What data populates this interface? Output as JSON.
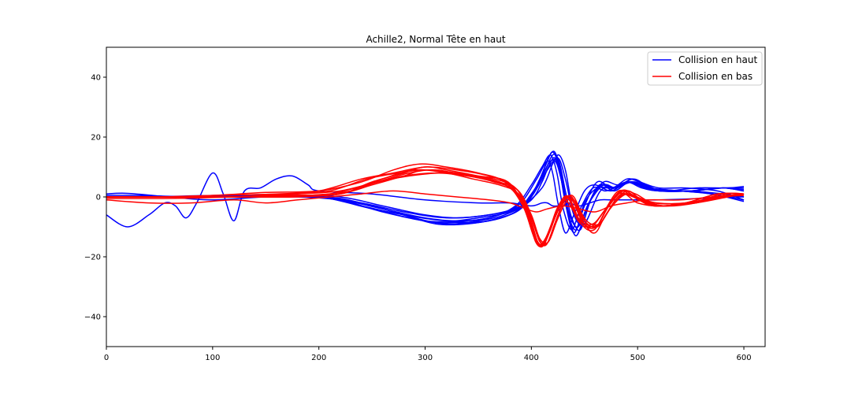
{
  "chart_data": {
    "type": "line",
    "title": "Achille2, Normal Tête en haut",
    "xlabel": "",
    "ylabel": "",
    "xlim": [
      0,
      620
    ],
    "ylim": [
      -50,
      50
    ],
    "xticks": [
      0,
      100,
      200,
      300,
      400,
      500,
      600
    ],
    "yticks": [
      -40,
      -20,
      0,
      20,
      40
    ],
    "x_tick_labels": [
      "0",
      "100",
      "200",
      "300",
      "400",
      "500",
      "600"
    ],
    "y_tick_labels": [
      "−40",
      "−20",
      "0",
      "20",
      "40"
    ],
    "grid": false,
    "legend_position": "top-right",
    "legend": [
      {
        "label": "Collision en haut",
        "color": "#0000ff"
      },
      {
        "label": "Collision en bas",
        "color": "#ff0000"
      }
    ],
    "series": [
      {
        "group": "Collision en haut",
        "color": "#0000ff",
        "x": [
          0,
          20,
          40,
          55,
          65,
          75,
          85,
          100,
          110,
          120,
          130,
          145,
          160,
          175,
          190,
          200,
          250,
          300,
          350,
          380,
          400,
          410,
          415,
          420,
          425,
          430,
          435,
          445,
          455,
          465,
          475,
          490,
          500,
          520,
          560,
          580,
          600
        ],
        "y": [
          -6,
          -10,
          -6,
          -2,
          -3,
          -7,
          -2,
          8,
          1,
          -8,
          2,
          3,
          6,
          7,
          4,
          2,
          1,
          -1,
          -2,
          -2,
          -3,
          -2,
          -2,
          -3,
          -3,
          -3,
          -2,
          -3,
          -2,
          -1,
          -1,
          -1,
          -1,
          -1,
          -0.5,
          0,
          0
        ]
      },
      {
        "group": "Collision en haut",
        "color": "#0000ff",
        "x": [
          0,
          20,
          60,
          100,
          150,
          200,
          250,
          300,
          340,
          370,
          390,
          405,
          415,
          420,
          425,
          432,
          440,
          450,
          460,
          475,
          490,
          500,
          520,
          550,
          580,
          600
        ],
        "y": [
          1,
          1.2,
          0,
          -1,
          0,
          0,
          -4,
          -8,
          -8,
          -6,
          -2,
          6,
          12,
          8,
          -2,
          -12,
          -6,
          2,
          4,
          2,
          5,
          4,
          2,
          2,
          1,
          0
        ]
      },
      {
        "group": "Collision en haut",
        "color": "#0000ff",
        "x": [
          0,
          30,
          80,
          130,
          180,
          220,
          260,
          300,
          330,
          360,
          385,
          400,
          410,
          418,
          424,
          430,
          438,
          446,
          458,
          470,
          485,
          498,
          510,
          540,
          570,
          600
        ],
        "y": [
          0.5,
          0.5,
          0,
          0,
          0,
          -1,
          -4,
          -7,
          -8,
          -7,
          -3,
          4,
          10,
          14,
          8,
          -4,
          -11,
          -4,
          3,
          2,
          4,
          5,
          3,
          2,
          1,
          -1
        ]
      },
      {
        "group": "Collision en haut",
        "color": "#0000ff",
        "x": [
          0,
          40,
          100,
          150,
          200,
          240,
          280,
          310,
          340,
          370,
          390,
          404,
          414,
          420,
          426,
          432,
          440,
          450,
          462,
          476,
          490,
          502,
          520,
          545,
          575,
          600
        ],
        "y": [
          0,
          0,
          0.5,
          0.5,
          0,
          -2,
          -6,
          -9,
          -9,
          -7,
          -4,
          3,
          11,
          15,
          10,
          -2,
          -12,
          -3,
          5,
          3,
          6,
          5,
          3,
          3,
          2,
          -1
        ]
      },
      {
        "group": "Collision en haut",
        "color": "#0000ff",
        "x": [
          0,
          50,
          100,
          150,
          200,
          250,
          290,
          320,
          350,
          375,
          395,
          408,
          416,
          422,
          428,
          434,
          442,
          452,
          464,
          478,
          492,
          505,
          520,
          550,
          580,
          600
        ],
        "y": [
          0,
          0,
          0,
          0.5,
          0,
          -3,
          -7,
          -9,
          -8,
          -6,
          -2,
          6,
          13,
          15,
          8,
          -4,
          -13,
          -4,
          4,
          2,
          5,
          4,
          2,
          2,
          3,
          2
        ]
      },
      {
        "group": "Collision en haut",
        "color": "#0000ff",
        "x": [
          0,
          60,
          120,
          180,
          220,
          260,
          300,
          330,
          360,
          385,
          400,
          410,
          418,
          424,
          430,
          436,
          444,
          454,
          466,
          480,
          494,
          506,
          522,
          550,
          580,
          600
        ],
        "y": [
          0,
          0,
          0.3,
          0.3,
          -0.5,
          -4,
          -8,
          -9,
          -8,
          -5,
          0,
          7,
          12,
          11,
          3,
          -6,
          -10,
          -2,
          4,
          3,
          6,
          4,
          2,
          2,
          3,
          3
        ]
      },
      {
        "group": "Collision en haut",
        "color": "#0000ff",
        "x": [
          0,
          60,
          120,
          180,
          220,
          260,
          300,
          330,
          360,
          385,
          400,
          412,
          420,
          426,
          432,
          438,
          446,
          456,
          468,
          482,
          496,
          508,
          525,
          555,
          585,
          600
        ],
        "y": [
          0,
          0,
          0,
          0.5,
          -1,
          -5,
          -8,
          -8.5,
          -8,
          -5,
          1,
          8,
          14,
          12,
          2,
          -7,
          -11,
          -1,
          5,
          4,
          6,
          4,
          2,
          3,
          3,
          3.5
        ]
      },
      {
        "group": "Collision en haut",
        "color": "#0000ff",
        "x": [
          0,
          80,
          140,
          200,
          240,
          280,
          320,
          350,
          380,
          400,
          410,
          416,
          422,
          428,
          434,
          442,
          450,
          462,
          476,
          490,
          504,
          520,
          550,
          580,
          600
        ],
        "y": [
          0,
          0,
          0.5,
          0,
          -3,
          -6,
          -8,
          -7,
          -5,
          -1,
          5,
          10,
          13,
          6,
          -5,
          -11,
          -2,
          3,
          3,
          5,
          3,
          2,
          2,
          3,
          2
        ]
      },
      {
        "group": "Collision en haut",
        "color": "#0000ff",
        "x": [
          0,
          80,
          150,
          200,
          240,
          280,
          320,
          360,
          390,
          410,
          420,
          426,
          432,
          438,
          446,
          456,
          468,
          480,
          494,
          506,
          520,
          550,
          580,
          600
        ],
        "y": [
          0,
          0,
          0,
          0,
          -2,
          -5,
          -7,
          -6,
          -3,
          3,
          11,
          14,
          9,
          -2,
          -8,
          -1,
          4,
          3,
          5,
          3,
          2,
          2,
          3,
          2.5
        ]
      },
      {
        "group": "Collision en haut",
        "color": "#0000ff",
        "x": [
          0,
          100,
          170,
          220,
          260,
          300,
          330,
          360,
          385,
          400,
          415,
          425,
          432,
          440,
          450,
          465,
          480,
          495,
          510,
          540,
          570,
          600
        ],
        "y": [
          0,
          0,
          0.5,
          0,
          -3,
          -6,
          -7,
          -6,
          -4,
          0,
          9,
          13,
          6,
          -6,
          -9,
          2,
          3,
          5,
          3,
          2,
          1,
          -1.5
        ]
      },
      {
        "group": "Collision en bas",
        "color": "#ff0000",
        "x": [
          0,
          40,
          80,
          120,
          150,
          180,
          210,
          240,
          270,
          300,
          330,
          360,
          380,
          395,
          405,
          415,
          430,
          445,
          460,
          475,
          490,
          510,
          540,
          570,
          600
        ],
        "y": [
          -1,
          -2,
          -2,
          -1,
          -2,
          -1,
          0,
          1,
          2,
          1,
          0,
          -1,
          -2,
          -4,
          -5,
          -4,
          -3,
          -4,
          -5,
          -3,
          -2,
          -1,
          -1,
          0,
          1
        ]
      },
      {
        "group": "Collision en bas",
        "color": "#ff0000",
        "x": [
          0,
          60,
          120,
          180,
          220,
          250,
          280,
          300,
          330,
          360,
          380,
          395,
          405,
          412,
          420,
          428,
          438,
          450,
          460,
          470,
          485,
          500,
          520,
          550,
          580,
          600
        ],
        "y": [
          0,
          0,
          0,
          0,
          1,
          4,
          7,
          9,
          8,
          6,
          3,
          -4,
          -15,
          -16,
          -8,
          -2,
          -1,
          -9,
          -12,
          -6,
          1,
          -2,
          -3,
          -2,
          0,
          1
        ]
      },
      {
        "group": "Collision en bas",
        "color": "#ff0000",
        "x": [
          0,
          60,
          120,
          180,
          220,
          250,
          280,
          300,
          330,
          360,
          380,
          395,
          404,
          410,
          418,
          426,
          434,
          444,
          456,
          468,
          482,
          496,
          515,
          545,
          575,
          600
        ],
        "y": [
          0,
          0,
          0,
          0.5,
          1,
          5,
          8,
          10,
          9,
          7,
          4,
          -5,
          -14,
          -16,
          -10,
          -3,
          0,
          -8,
          -10,
          -5,
          2,
          0,
          -3,
          -2,
          1,
          1
        ]
      },
      {
        "group": "Collision en bas",
        "color": "#ff0000",
        "x": [
          0,
          50,
          100,
          160,
          200,
          240,
          270,
          300,
          320,
          350,
          378,
          394,
          403,
          410,
          418,
          426,
          434,
          446,
          458,
          470,
          484,
          498,
          515,
          545,
          575,
          600
        ],
        "y": [
          0,
          0,
          0.5,
          1,
          2,
          6,
          8,
          10,
          9,
          7,
          5,
          -4,
          -13,
          -16,
          -11,
          -3,
          0,
          -8,
          -9,
          -4,
          2,
          1,
          -2,
          -2,
          0,
          1
        ]
      },
      {
        "group": "Collision en bas",
        "color": "#ff0000",
        "x": [
          0,
          50,
          100,
          150,
          200,
          240,
          270,
          295,
          320,
          350,
          375,
          392,
          402,
          408,
          416,
          424,
          432,
          444,
          456,
          468,
          482,
          496,
          515,
          545,
          575,
          600
        ],
        "y": [
          0,
          0,
          0.5,
          1.5,
          2,
          5,
          9,
          11,
          10,
          8,
          5,
          -3,
          -13,
          -16,
          -12,
          -4,
          -1,
          -7,
          -10,
          -5,
          1,
          0,
          -3,
          -2,
          1,
          1
        ]
      },
      {
        "group": "Collision en bas",
        "color": "#ff0000",
        "x": [
          0,
          60,
          120,
          170,
          210,
          245,
          275,
          300,
          325,
          355,
          380,
          395,
          404,
          411,
          419,
          427,
          435,
          447,
          459,
          471,
          485,
          499,
          518,
          548,
          578,
          600
        ],
        "y": [
          0,
          0,
          0,
          1,
          2,
          6,
          8,
          9,
          8,
          6,
          3,
          -5,
          -15,
          -16,
          -9,
          -2,
          0,
          -9,
          -11,
          -4,
          2,
          0,
          -2,
          -2,
          0,
          0.5
        ]
      },
      {
        "group": "Collision en bas",
        "color": "#ff0000",
        "x": [
          0,
          60,
          120,
          170,
          210,
          245,
          280,
          310,
          340,
          365,
          385,
          398,
          406,
          413,
          421,
          429,
          437,
          449,
          461,
          473,
          487,
          501,
          520,
          550,
          580,
          600
        ],
        "y": [
          0,
          0,
          0,
          0.5,
          1,
          4,
          7,
          8,
          7,
          5,
          2,
          -6,
          -15,
          -15,
          -8,
          -2,
          0,
          -9,
          -10,
          -3,
          2,
          -1,
          -3,
          -2,
          1,
          1
        ]
      },
      {
        "group": "Collision en bas",
        "color": "#ff0000",
        "x": [
          0,
          60,
          120,
          180,
          220,
          255,
          285,
          310,
          340,
          365,
          385,
          398,
          407,
          414,
          422,
          430,
          438,
          450,
          462,
          474,
          488,
          502,
          522,
          552,
          582,
          600
        ],
        "y": [
          0,
          0,
          0,
          0.5,
          1,
          5,
          8,
          9,
          7,
          6,
          3,
          -5,
          -14,
          -16,
          -9,
          -2,
          0,
          -8,
          -10,
          -4,
          1,
          -1,
          -3,
          -2,
          0,
          1
        ]
      },
      {
        "group": "Collision en bas",
        "color": "#ff0000",
        "x": [
          0,
          80,
          140,
          190,
          230,
          260,
          290,
          320,
          345,
          370,
          388,
          400,
          408,
          416,
          424,
          432,
          440,
          452,
          464,
          476,
          490,
          504,
          525,
          555,
          585,
          600
        ],
        "y": [
          0,
          0,
          0,
          0.5,
          2,
          6,
          9,
          8,
          6,
          4,
          1,
          -7,
          -15,
          -15,
          -7,
          -1,
          0,
          -9,
          -9,
          -3,
          2,
          -1,
          -3,
          -2,
          1,
          1
        ]
      },
      {
        "group": "Collision en bas",
        "color": "#ff0000",
        "x": [
          0,
          60,
          120,
          180,
          220,
          255,
          285,
          315,
          345,
          370,
          388,
          400,
          408,
          416,
          424,
          432,
          440,
          452,
          464,
          476,
          490,
          504,
          525,
          555,
          585,
          600
        ],
        "y": [
          -0.5,
          -0.5,
          0,
          1,
          2,
          5,
          7,
          8,
          7,
          5,
          2,
          -6,
          -14,
          -15,
          -8,
          -2,
          -1,
          -8,
          -9,
          -3,
          1,
          -1,
          -3,
          -2,
          0,
          1
        ]
      }
    ]
  }
}
